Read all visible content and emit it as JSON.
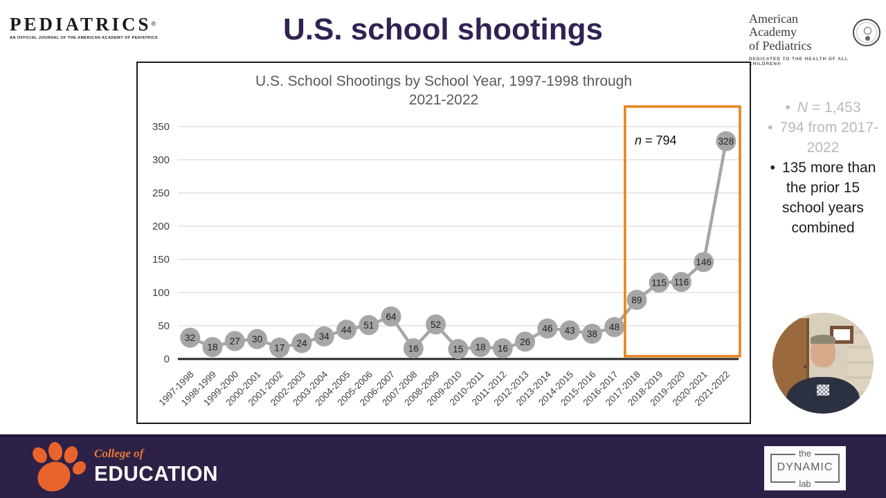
{
  "header": {
    "pediatrics_logo": {
      "title": "PEDIATRICS",
      "registered": "®",
      "tagline": "AN OFFICIAL JOURNAL OF THE AMERICAN ACADEMY OF PEDIATRICS"
    },
    "slide_title": "U.S. school shootings",
    "aap_logo": {
      "line1": "American Academy",
      "line2": "of Pediatrics",
      "tagline": "DEDICATED TO THE HEALTH OF ALL CHILDREN®"
    }
  },
  "chart_data": {
    "type": "line",
    "title": "U.S. School Shootings by School Year, 1997-1998 through 2021-2022",
    "title_lines": [
      "U.S. School Shootings by School Year, 1997-1998 through",
      "2021-2022"
    ],
    "categories": [
      "1997-1998",
      "1998-1999",
      "1999-2000",
      "2000-2001",
      "2001-2002",
      "2002-2003",
      "2003-2004",
      "2004-2005",
      "2005-2006",
      "2006-2007",
      "2007-2008",
      "2008-2009",
      "2009-2010",
      "2010-2011",
      "2011-2012",
      "2012-2013",
      "2013-2014",
      "2014-2015",
      "2015-2016",
      "2016-2017",
      "2017-2018",
      "2018-2019",
      "2019-2020",
      "2020-2021",
      "2021-2022"
    ],
    "values": [
      32,
      18,
      27,
      30,
      17,
      24,
      34,
      44,
      51,
      64,
      16,
      52,
      15,
      18,
      16,
      26,
      46,
      43,
      38,
      48,
      89,
      115,
      116,
      146,
      328
    ],
    "ylim": [
      0,
      350
    ],
    "yticks": [
      0,
      50,
      100,
      150,
      200,
      250,
      300,
      350
    ],
    "xlabel": "",
    "ylabel": "",
    "grid": true,
    "legend": "none",
    "annotation_n": "n",
    "annotation_rest": " = 794",
    "highlight_years": [
      "2017-2018",
      "2021-2022"
    ],
    "line_color": "#a6a6a6",
    "marker_color": "#a6a6a6",
    "highlight_box_color": "#e8821e"
  },
  "side_notes": {
    "bullet_char": "•",
    "n_label_italic": "N",
    "n_label_rest": " = 1,453",
    "second": "794 from 2017-2022",
    "third": "135 more than the prior 15 school years combined"
  },
  "footer": {
    "clemson": {
      "college_of": "College of",
      "education": "EDUCATION"
    },
    "dynamic_lab": {
      "the": "the",
      "dynamic": "DYNAMIC",
      "lab": "lab"
    },
    "bar_color": "#2d2147"
  },
  "theme": {
    "title_purple": "#312253",
    "accent_orange": "#e8642c",
    "muted_text": "#b9b9b9"
  }
}
